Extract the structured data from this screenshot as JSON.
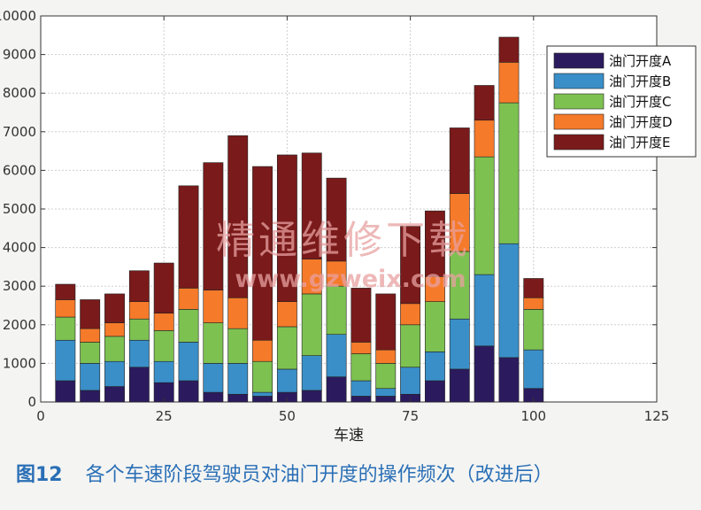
{
  "chart_data": {
    "type": "bar",
    "stacked": true,
    "title": "",
    "xlabel": "车速",
    "ylabel": "",
    "xlim": [
      0,
      125
    ],
    "ylim": [
      0,
      10000
    ],
    "xticks": [
      0,
      25,
      50,
      75,
      100,
      125
    ],
    "yticks": [
      0,
      1000,
      2000,
      3000,
      4000,
      5000,
      6000,
      7000,
      8000,
      9000,
      10000
    ],
    "grid": true,
    "legend_position": "top-right",
    "x": [
      5,
      10,
      15,
      20,
      25,
      30,
      35,
      40,
      45,
      50,
      55,
      60,
      65,
      70,
      75,
      80,
      85,
      90,
      95,
      100
    ],
    "series": [
      {
        "name": "油门开度A",
        "color": "#2b1b5e",
        "values": [
          550,
          300,
          400,
          900,
          500,
          550,
          250,
          200,
          150,
          250,
          300,
          650,
          150,
          150,
          200,
          550,
          850,
          1450,
          1150,
          350
        ]
      },
      {
        "name": "油门开度B",
        "color": "#3a8fc8",
        "values": [
          1050,
          700,
          650,
          700,
          550,
          1000,
          750,
          800,
          100,
          600,
          900,
          1100,
          400,
          200,
          700,
          750,
          1300,
          1850,
          2950,
          1000
        ]
      },
      {
        "name": "油门开度C",
        "color": "#7dc151",
        "values": [
          600,
          550,
          650,
          550,
          800,
          850,
          1050,
          900,
          800,
          1100,
          1600,
          1250,
          700,
          650,
          1100,
          1300,
          1750,
          3050,
          3650,
          1050
        ]
      },
      {
        "name": "油门开度D",
        "color": "#f57a2a",
        "values": [
          450,
          350,
          350,
          450,
          450,
          550,
          850,
          800,
          550,
          650,
          900,
          650,
          300,
          350,
          550,
          650,
          1500,
          950,
          1050,
          300
        ]
      },
      {
        "name": "油门开度E",
        "color": "#7a1a1a",
        "values": [
          400,
          750,
          750,
          800,
          1300,
          2650,
          3300,
          4200,
          4500,
          3800,
          2750,
          2150,
          1400,
          1450,
          2000,
          1700,
          1700,
          900,
          650,
          500
        ]
      }
    ]
  },
  "watermark": {
    "line1": "精通维修下载",
    "line2": "www.gzweix.com"
  },
  "caption": {
    "figure_label": "图12",
    "text": "各个车速阶段驾驶员对油门开度的操作频次（改进后）"
  }
}
